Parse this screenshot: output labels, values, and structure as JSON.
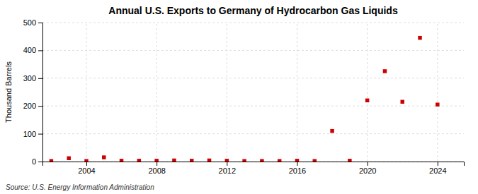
{
  "chart_data": {
    "type": "scatter",
    "title": "Annual U.S. Exports to Germany of Hydrocarbon Gas Liquids",
    "ylabel": "Thousand Barrels",
    "annotations": [
      "Source: U.S. Energy Information Administration"
    ],
    "x": [
      2002,
      2003,
      2004,
      2005,
      2006,
      2007,
      2008,
      2009,
      2010,
      2011,
      2012,
      2013,
      2014,
      2015,
      2016,
      2017,
      2018,
      2019,
      2020,
      2021,
      2022,
      2023,
      2024
    ],
    "values": [
      2,
      12,
      2,
      15,
      3,
      3,
      3,
      4,
      3,
      4,
      3,
      2,
      2,
      2,
      3,
      2,
      110,
      3,
      220,
      325,
      215,
      445,
      205
    ],
    "color": "#cc0000",
    "marker": "square",
    "xlim": [
      2001.5,
      2025.5
    ],
    "ylim": [
      0,
      500
    ],
    "xticks": [
      2004,
      2008,
      2012,
      2016,
      2020,
      2024
    ],
    "yticks": [
      0,
      100,
      200,
      300,
      400,
      500
    ],
    "grid": true
  }
}
